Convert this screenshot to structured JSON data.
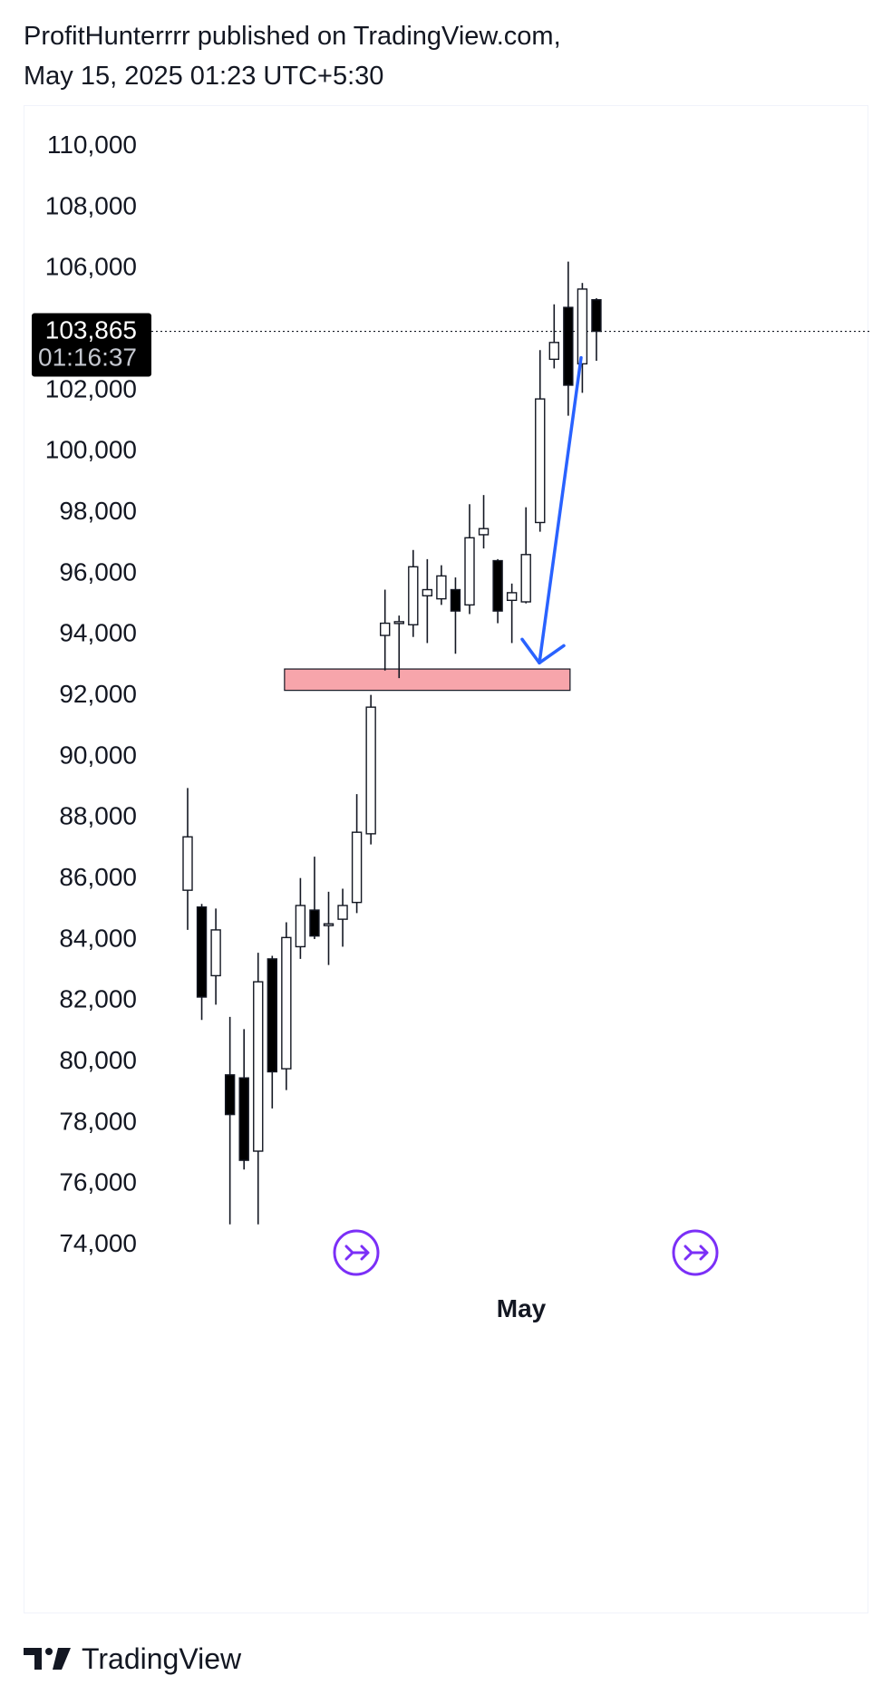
{
  "header": {
    "line1": "ProfitHunterrrr published on TradingView.com,",
    "line2": "May 15, 2025 01:23 UTC+5:30"
  },
  "footer": {
    "brand": "TradingView"
  },
  "colors": {
    "up": "#ffffff",
    "down": "#000000",
    "arrow": "#2962ff",
    "zone": "#f7a5ab",
    "nav": "#7b2ff7"
  },
  "chart_data": {
    "type": "candlestick",
    "price_label": {
      "value": "103,865",
      "countdown": "01:16:37"
    },
    "x_tick_label": "May",
    "y_ticks": [
      "110,000",
      "108,000",
      "106,000",
      "102,000",
      "100,000",
      "98,000",
      "96,000",
      "94,000",
      "92,000",
      "90,000",
      "88,000",
      "86,000",
      "84,000",
      "82,000",
      "80,000",
      "78,000",
      "76,000",
      "74,000"
    ],
    "ylim": [
      73000,
      111500
    ],
    "current_price": 103865,
    "candles": [
      {
        "o": 85550,
        "h": 88900,
        "l": 84250,
        "c": 87300
      },
      {
        "o": 85000,
        "h": 85100,
        "l": 81300,
        "c": 82050
      },
      {
        "o": 82750,
        "h": 84950,
        "l": 81800,
        "c": 84250
      },
      {
        "o": 79500,
        "h": 81400,
        "l": 74600,
        "c": 78200
      },
      {
        "o": 79400,
        "h": 81000,
        "l": 76400,
        "c": 76700
      },
      {
        "o": 77000,
        "h": 83500,
        "l": 74600,
        "c": 82550
      },
      {
        "o": 83300,
        "h": 83400,
        "l": 78400,
        "c": 79600
      },
      {
        "o": 79700,
        "h": 84500,
        "l": 79000,
        "c": 84000
      },
      {
        "o": 83700,
        "h": 85950,
        "l": 83300,
        "c": 85050
      },
      {
        "o": 84900,
        "h": 86650,
        "l": 83950,
        "c": 84050
      },
      {
        "o": 84400,
        "h": 85500,
        "l": 83100,
        "c": 84450
      },
      {
        "o": 84600,
        "h": 85600,
        "l": 83700,
        "c": 85050
      },
      {
        "o": 85150,
        "h": 88700,
        "l": 84800,
        "c": 87450
      },
      {
        "o": 87400,
        "h": 91950,
        "l": 87050,
        "c": 91550
      },
      {
        "o": 93900,
        "h": 95400,
        "l": 92750,
        "c": 94300
      },
      {
        "o": 94300,
        "h": 94550,
        "l": 92500,
        "c": 94350
      },
      {
        "o": 94250,
        "h": 96700,
        "l": 93850,
        "c": 96150
      },
      {
        "o": 95200,
        "h": 96400,
        "l": 93650,
        "c": 95400
      },
      {
        "o": 95100,
        "h": 96200,
        "l": 94900,
        "c": 95850
      },
      {
        "o": 95400,
        "h": 95800,
        "l": 93300,
        "c": 94700
      },
      {
        "o": 94900,
        "h": 98200,
        "l": 94600,
        "c": 97100
      },
      {
        "o": 97200,
        "h": 98500,
        "l": 96750,
        "c": 97400
      },
      {
        "o": 96350,
        "h": 96400,
        "l": 94300,
        "c": 94700
      },
      {
        "o": 95050,
        "h": 95600,
        "l": 93650,
        "c": 95300
      },
      {
        "o": 95000,
        "h": 98100,
        "l": 94950,
        "c": 96550
      },
      {
        "o": 97600,
        "h": 103250,
        "l": 97300,
        "c": 101650
      },
      {
        "o": 102950,
        "h": 104750,
        "l": 102650,
        "c": 103500
      },
      {
        "o": 104650,
        "h": 106150,
        "l": 101100,
        "c": 102100
      },
      {
        "o": 102800,
        "h": 105450,
        "l": 101850,
        "c": 105250
      },
      {
        "o": 104900,
        "h": 104950,
        "l": 102900,
        "c": 103865
      }
    ],
    "annotations": [
      {
        "type": "zone",
        "from_candle": 7,
        "to_candle": 27,
        "low": 92100,
        "high": 92800
      },
      {
        "type": "arrow",
        "from_price": 103000,
        "to_price": 93000
      }
    ]
  }
}
